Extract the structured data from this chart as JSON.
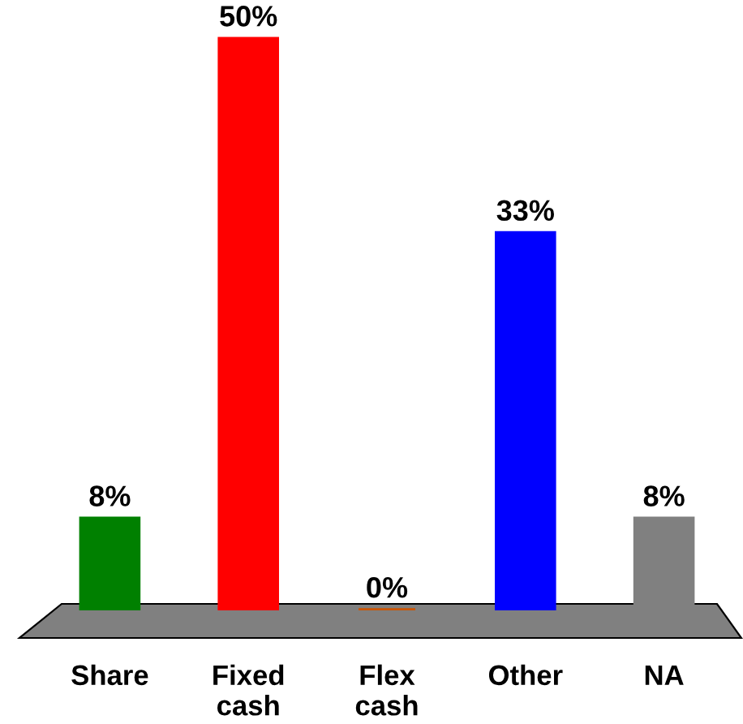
{
  "chart_data": {
    "type": "bar",
    "categories": [
      "Share",
      "Fixed cash",
      "Flex cash",
      "Other",
      "NA"
    ],
    "values": [
      8,
      50,
      0,
      33,
      8
    ],
    "colors": [
      "#008000",
      "#ff0000",
      "#cc5500",
      "#0000ff",
      "#808080"
    ],
    "value_labels": [
      "8%",
      "50%",
      "0%",
      "33%",
      "8%"
    ]
  }
}
